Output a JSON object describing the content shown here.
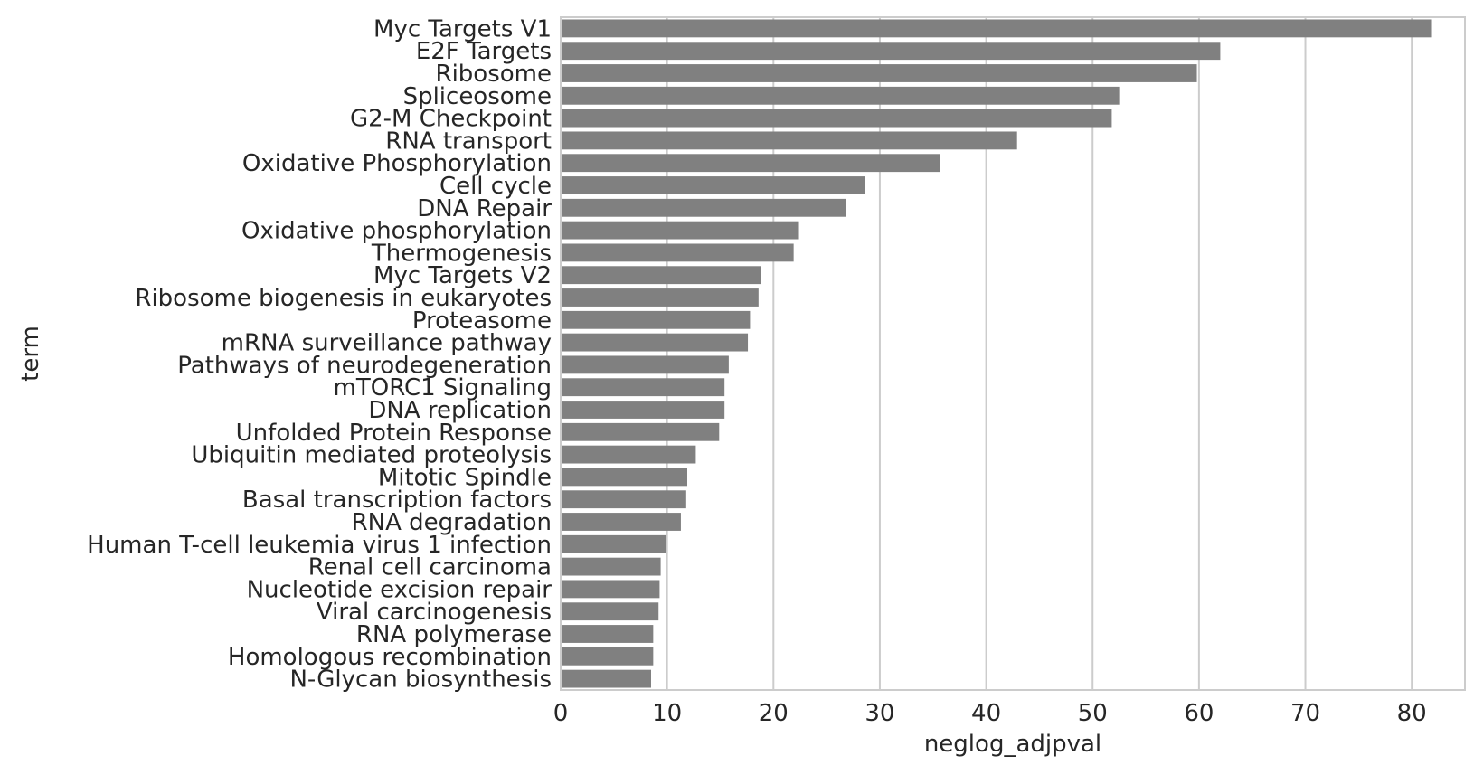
{
  "chart_data": {
    "type": "bar",
    "orientation": "horizontal",
    "xlabel": "neglog_adjpval",
    "ylabel": "term",
    "xlim": [
      0,
      85
    ],
    "xticks": [
      0,
      10,
      20,
      30,
      40,
      50,
      60,
      70,
      80
    ],
    "grid": "vertical",
    "bar_color": "#808080",
    "grid_color": "#cccccc",
    "categories": [
      "Myc Targets V1",
      "E2F Targets",
      "Ribosome",
      "Spliceosome",
      "G2-M Checkpoint",
      "RNA transport",
      "Oxidative Phosphorylation",
      "Cell cycle",
      "DNA Repair",
      "Oxidative phosphorylation",
      "Thermogenesis",
      "Myc Targets V2",
      "Ribosome biogenesis in eukaryotes",
      "Proteasome",
      "mRNA surveillance pathway",
      "Pathways of neurodegeneration",
      "mTORC1 Signaling",
      "DNA replication",
      "Unfolded Protein Response",
      "Ubiquitin mediated proteolysis",
      "Mitotic Spindle",
      "Basal transcription factors",
      "RNA degradation",
      "Human T-cell leukemia virus 1 infection",
      "Renal cell carcinoma",
      "Nucleotide excision repair",
      "Viral carcinogenesis",
      "RNA polymerase",
      "Homologous recombination",
      "N-Glycan biosynthesis"
    ],
    "values": [
      81.9,
      62.0,
      59.8,
      52.5,
      51.8,
      42.9,
      35.7,
      28.6,
      26.8,
      22.4,
      21.9,
      18.8,
      18.6,
      17.8,
      17.6,
      15.8,
      15.4,
      15.4,
      14.9,
      12.7,
      11.9,
      11.8,
      11.3,
      9.9,
      9.4,
      9.3,
      9.2,
      8.7,
      8.7,
      8.5
    ]
  }
}
